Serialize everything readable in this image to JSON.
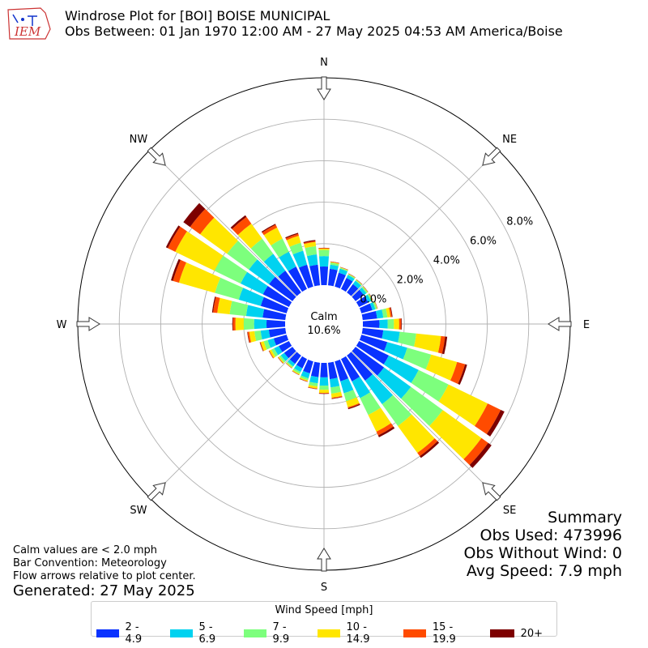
{
  "logo_text": "IEM",
  "title_line1": "Windrose Plot for [BOI] BOISE MUNICIPAL",
  "title_line2": "Obs Between: 01 Jan 1970 12:00 AM - 27 May 2025 04:53 AM America/Boise",
  "chart_data": {
    "type": "windrose",
    "convention": "meteorology",
    "radial_unit": "%",
    "radial_ticks": [
      0,
      2,
      4,
      6,
      8
    ],
    "radial_tick_labels": [
      "0.0%",
      "2.0%",
      "4.0%",
      "6.0%",
      "8.0%"
    ],
    "rmax": 10,
    "compass_labels": [
      "N",
      "NE",
      "E",
      "SE",
      "S",
      "SW",
      "W",
      "NW"
    ],
    "calm_label": "Calm",
    "calm_value": "10.6%",
    "sector_width_deg": 10,
    "bins": [
      {
        "name": "2 - 4.9",
        "color": "#0a32ff"
      },
      {
        "name": "5 - 6.9",
        "color": "#00d2f0"
      },
      {
        "name": "7 - 9.9",
        "color": "#7dff7d"
      },
      {
        "name": "10 - 14.9",
        "color": "#ffe600"
      },
      {
        "name": "15 - 19.9",
        "color": "#ff4b00"
      },
      {
        "name": "20+",
        "color": "#7d0000"
      }
    ],
    "directions": [
      0,
      10,
      20,
      30,
      40,
      50,
      60,
      70,
      80,
      90,
      100,
      110,
      120,
      130,
      140,
      150,
      160,
      170,
      180,
      190,
      200,
      210,
      220,
      230,
      240,
      250,
      260,
      270,
      280,
      290,
      300,
      310,
      320,
      330,
      340,
      350
    ],
    "cumulative": [
      [
        0.9,
        1.4,
        1.7,
        1.76,
        1.79,
        1.8
      ],
      [
        0.8,
        1.0,
        1.1,
        1.13,
        1.15,
        1.16
      ],
      [
        0.7,
        0.9,
        0.95,
        0.97,
        0.98,
        0.99
      ],
      [
        0.6,
        0.75,
        0.8,
        0.82,
        0.83,
        0.84
      ],
      [
        0.5,
        0.7,
        0.75,
        0.77,
        0.78,
        0.79
      ],
      [
        0.5,
        0.65,
        0.72,
        0.74,
        0.75,
        0.76
      ],
      [
        0.5,
        0.65,
        0.72,
        0.74,
        0.75,
        0.76
      ],
      [
        0.55,
        0.7,
        0.78,
        0.8,
        0.81,
        0.82
      ],
      [
        0.7,
        1.0,
        1.2,
        1.35,
        1.42,
        1.45
      ],
      [
        0.8,
        1.2,
        1.5,
        1.75,
        1.85,
        1.88
      ],
      [
        1.0,
        1.8,
        2.6,
        3.8,
        4.0,
        4.1
      ],
      [
        1.3,
        2.3,
        3.5,
        4.8,
        5.2,
        5.3
      ],
      [
        1.6,
        3.2,
        4.8,
        6.9,
        7.6,
        7.8
      ],
      [
        1.7,
        3.3,
        5.2,
        7.5,
        7.9,
        8.1
      ],
      [
        1.5,
        2.9,
        4.2,
        5.8,
        6.0,
        6.1
      ],
      [
        1.2,
        2.1,
        3.0,
        3.9,
        4.1,
        4.2
      ],
      [
        1.0,
        1.6,
        2.0,
        2.3,
        2.35,
        2.4
      ],
      [
        0.8,
        1.2,
        1.5,
        1.7,
        1.74,
        1.76
      ],
      [
        0.7,
        1.1,
        1.3,
        1.45,
        1.48,
        1.5
      ],
      [
        0.7,
        1.0,
        1.15,
        1.25,
        1.28,
        1.29
      ],
      [
        0.6,
        0.85,
        0.95,
        1.0,
        1.02,
        1.03
      ],
      [
        0.5,
        0.7,
        0.8,
        0.85,
        0.86,
        0.87
      ],
      [
        0.5,
        0.65,
        0.72,
        0.75,
        0.76,
        0.77
      ],
      [
        0.5,
        0.7,
        0.8,
        0.85,
        0.87,
        0.88
      ],
      [
        0.55,
        0.8,
        0.95,
        1.05,
        1.08,
        1.09
      ],
      [
        0.65,
        0.95,
        1.15,
        1.3,
        1.33,
        1.35
      ],
      [
        0.8,
        1.2,
        1.5,
        1.75,
        1.83,
        1.85
      ],
      [
        0.9,
        1.5,
        2.0,
        2.4,
        2.52,
        2.55
      ],
      [
        1.1,
        1.9,
        2.7,
        3.3,
        3.5,
        3.55
      ],
      [
        1.3,
        2.4,
        3.6,
        5.4,
        5.7,
        5.8
      ],
      [
        1.4,
        2.6,
        4.0,
        6.1,
        6.5,
        6.6
      ],
      [
        1.4,
        2.6,
        3.9,
        5.5,
        6.1,
        6.5
      ],
      [
        1.3,
        2.3,
        3.2,
        4.1,
        4.5,
        4.6
      ],
      [
        1.2,
        2.0,
        2.7,
        3.3,
        3.45,
        3.5
      ],
      [
        1.1,
        1.8,
        2.2,
        2.55,
        2.65,
        2.7
      ],
      [
        1.0,
        1.5,
        1.9,
        2.1,
        2.15,
        2.2
      ]
    ]
  },
  "summary": {
    "title": "Summary",
    "obs_used": "Obs Used: 473996",
    "obs_without_wind": "Obs Without Wind: 0",
    "avg_speed": "Avg Speed: 7.9 mph"
  },
  "notes": {
    "calm_note": "Calm values are < 2.0 mph",
    "convention_note": "Bar Convention: Meteorology",
    "arrows_note": "Flow arrows relative to plot center."
  },
  "generated": "Generated: 27 May 2025",
  "legend": {
    "title": "Wind Speed [mph]",
    "items": [
      "2 - 4.9",
      "5 - 6.9",
      "7 - 9.9",
      "10 - 14.9",
      "15 - 19.9",
      "20+"
    ]
  }
}
